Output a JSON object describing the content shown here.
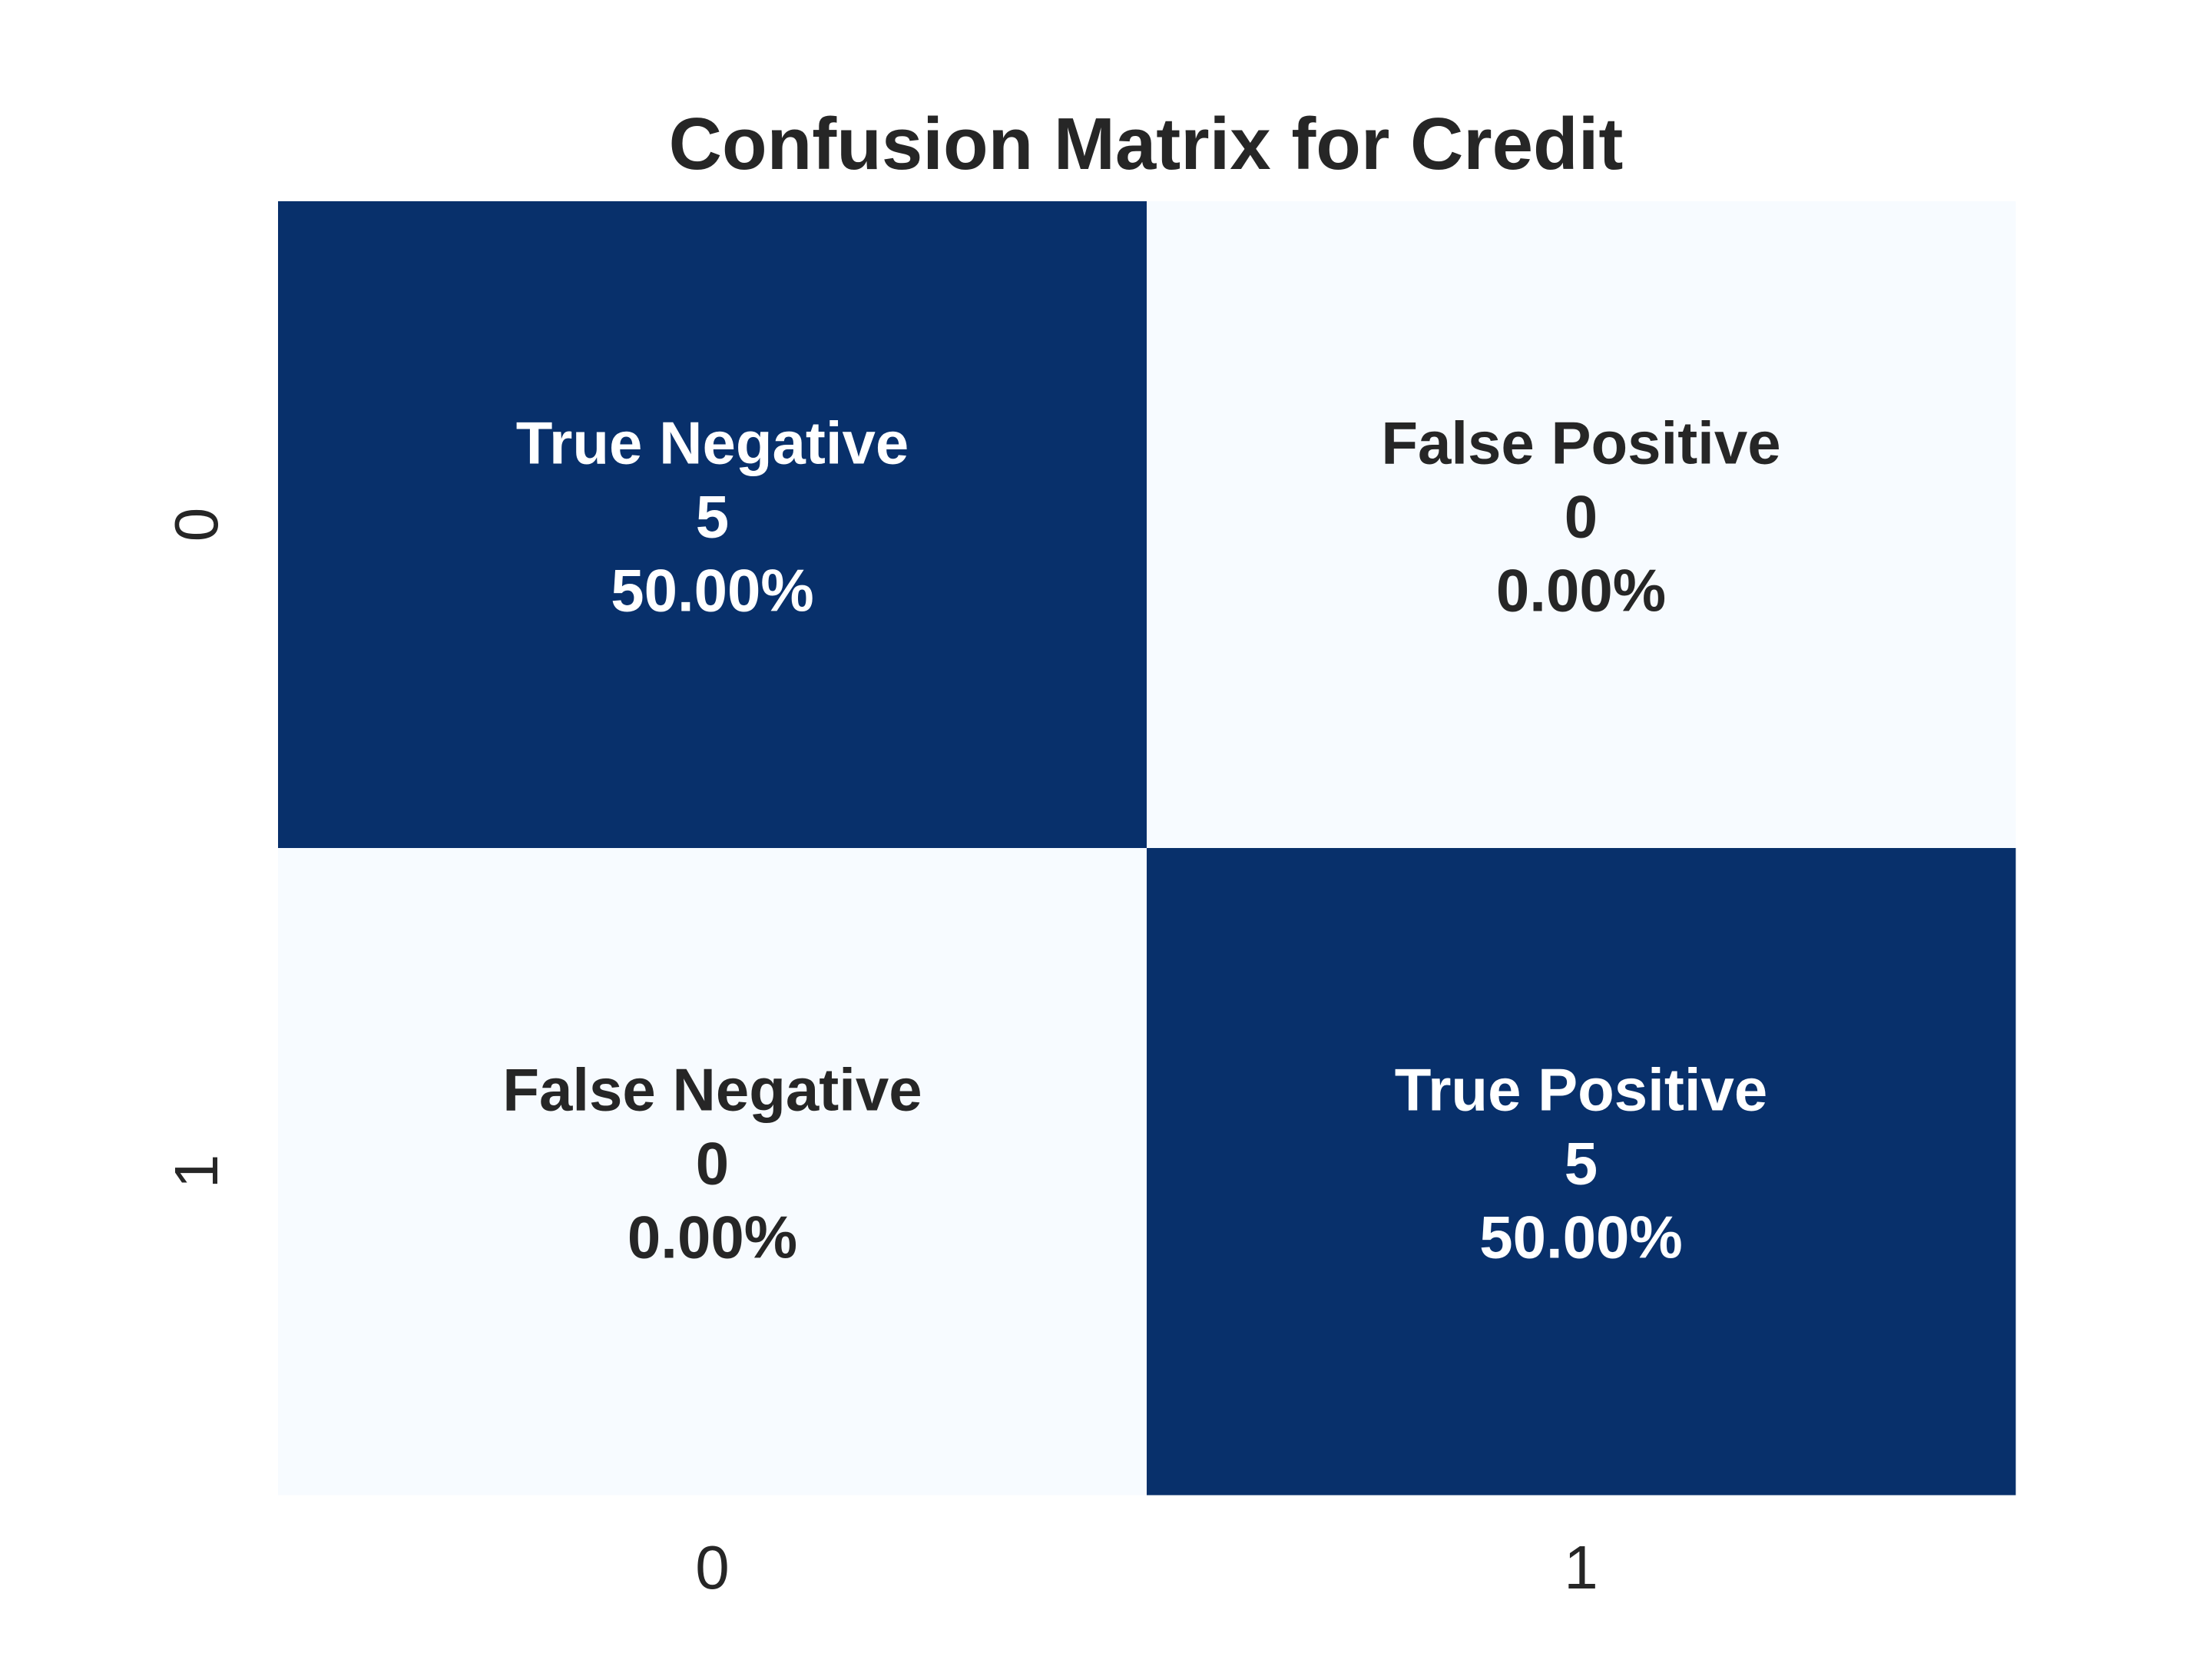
{
  "chart_data": {
    "type": "heatmap",
    "title": "Confusion Matrix for Credit",
    "xlabel": "",
    "ylabel": "",
    "x_categories": [
      "0",
      "1"
    ],
    "y_categories": [
      "0",
      "1"
    ],
    "values": [
      [
        5,
        0
      ],
      [
        0,
        5
      ]
    ],
    "value_range": [
      0,
      5
    ],
    "colorbar": false,
    "grid": false,
    "colors": {
      "low": "#f7fbff",
      "high": "#08306b",
      "text_on_dark": "#ffffff",
      "text_on_light": "#262626"
    },
    "annotations": [
      [
        {
          "name": "True Negative",
          "count": "5",
          "percent": "50.00%"
        },
        {
          "name": "False Positive",
          "count": "0",
          "percent": "0.00%"
        }
      ],
      [
        {
          "name": "False Negative",
          "count": "0",
          "percent": "0.00%"
        },
        {
          "name": "True Positive",
          "count": "5",
          "percent": "50.00%"
        }
      ]
    ]
  }
}
